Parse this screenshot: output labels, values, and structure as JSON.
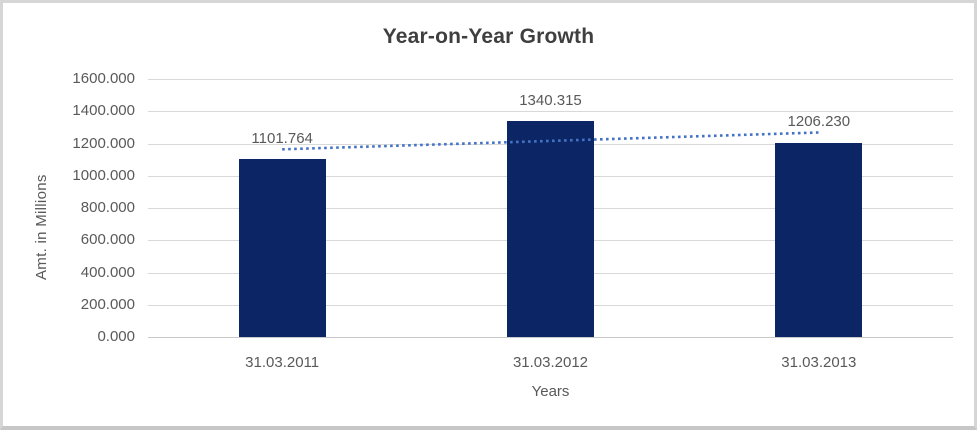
{
  "chart_data": {
    "type": "bar",
    "title": "Year-on-Year Growth",
    "xlabel": "Years",
    "ylabel": "Amt. in Millions",
    "categories": [
      "31.03.2011",
      "31.03.2012",
      "31.03.2013"
    ],
    "series": [
      {
        "name": "Amt. in Millions",
        "values": [
          1101.764,
          1340.315,
          1206.23
        ]
      }
    ],
    "data_labels": [
      "1101.764",
      "1340.315",
      "1206.230"
    ],
    "ylim": [
      0,
      1600
    ],
    "ytick_step": 200,
    "ytick_labels": [
      "1600.000",
      "1400.000",
      "1200.000",
      "1000.000",
      "800.000",
      "600.000",
      "400.000",
      "200.000",
      "0.000"
    ],
    "grid": true,
    "legend": false,
    "trendline": {
      "type": "linear",
      "style": "dotted",
      "endpoint_values": [
        1163.9,
        1268.3
      ]
    },
    "colors": {
      "bar": "#0b2565",
      "trendline": "#4472c4",
      "gridline": "#d9d9d9",
      "axis_text": "#595959",
      "title_text": "#3f3f3f"
    }
  }
}
